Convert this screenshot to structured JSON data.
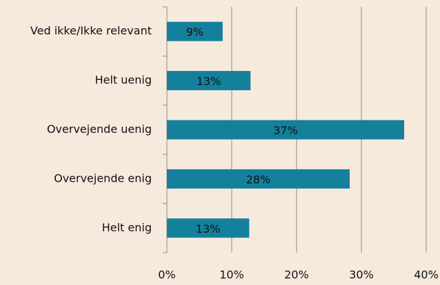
{
  "chart_data": {
    "type": "bar",
    "orientation": "horizontal",
    "categories": [
      "Ved ikke/Ikke relevant",
      "Helt uenig",
      "Overvejende uenig",
      "Overvejende enig",
      "Helt enig"
    ],
    "values": [
      8.6,
      12.9,
      36.6,
      28.2,
      12.7
    ],
    "value_labels": [
      "9%",
      "13%",
      "37%",
      "28%",
      "13%"
    ],
    "color": "#14809c",
    "xlim": [
      0,
      40
    ],
    "xticks": [
      {
        "value": 0,
        "label": "0%"
      },
      {
        "value": 10,
        "label": "10%"
      },
      {
        "value": 20,
        "label": "20%"
      },
      {
        "value": 30,
        "label": "30%"
      },
      {
        "value": 40,
        "label": "40%"
      }
    ],
    "grid": true
  }
}
